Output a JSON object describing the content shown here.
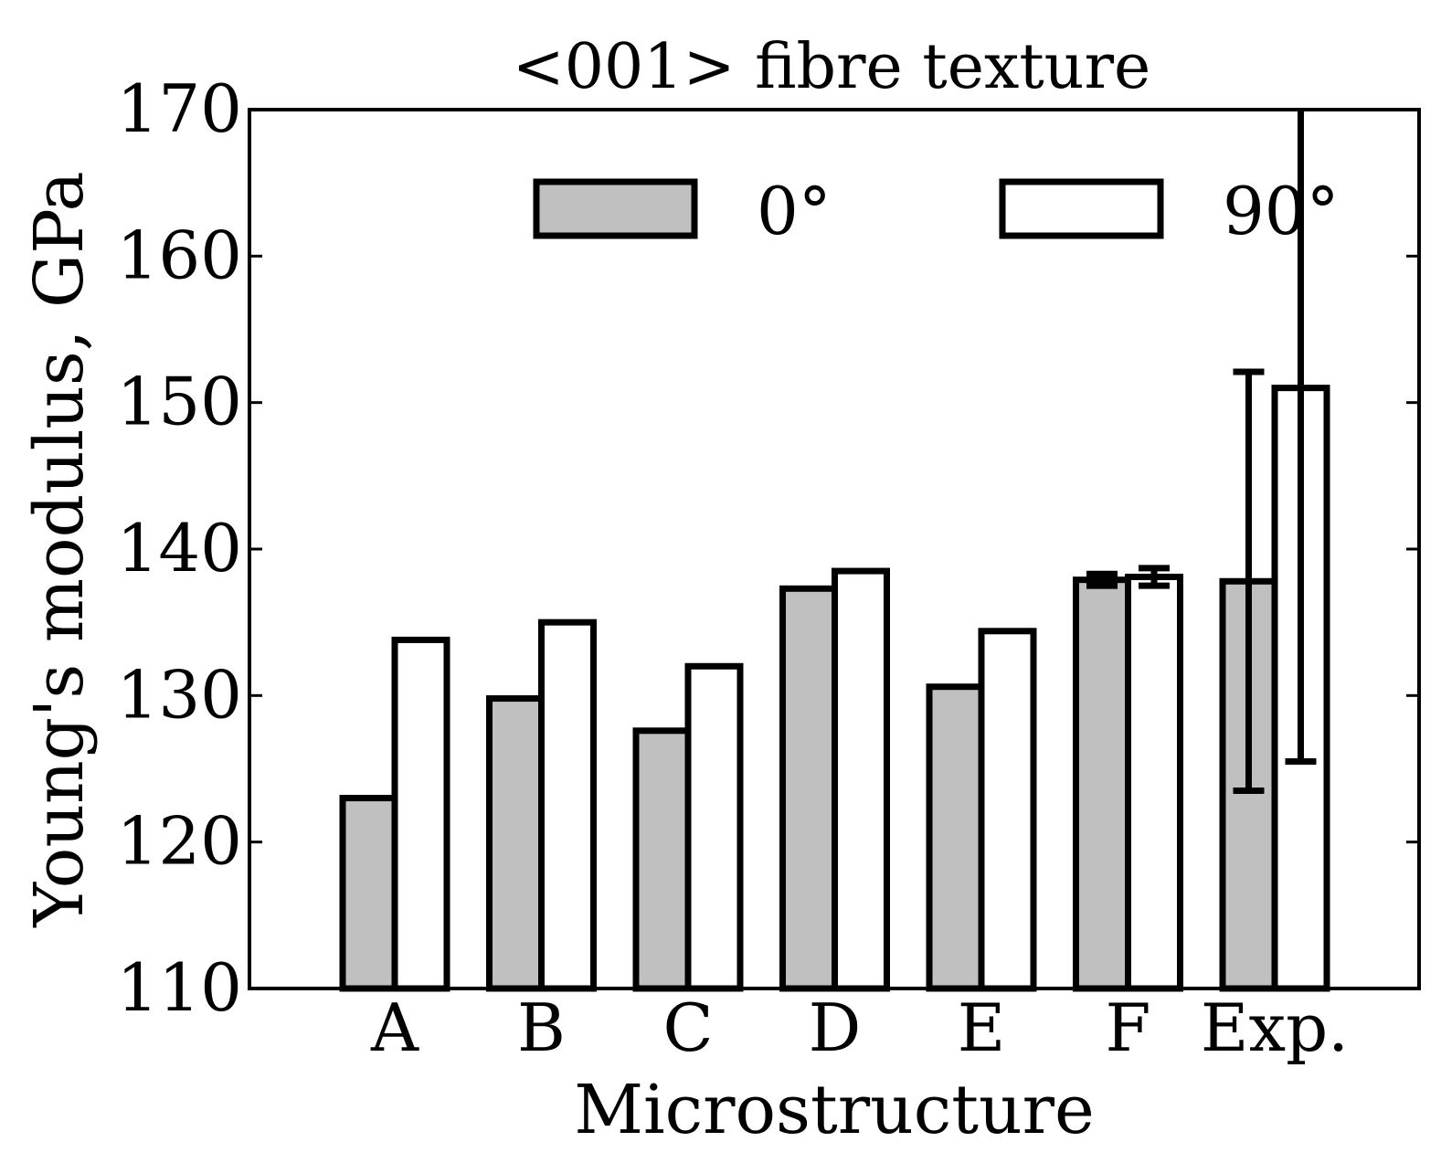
{
  "chart_data": {
    "type": "bar",
    "title": "<001> fibre texture",
    "xlabel": "Microstructure",
    "ylabel": "Young's modulus, GPa",
    "categories": [
      "A",
      "B",
      "C",
      "D",
      "E",
      "F",
      "Exp."
    ],
    "ylim": [
      110,
      170
    ],
    "yticks": [
      "110",
      "120",
      "130",
      "140",
      "150",
      "160",
      "170"
    ],
    "grid": false,
    "legend_position": "top",
    "series": [
      {
        "name": "0°",
        "color": "#c0c0c0",
        "values": [
          123.0,
          129.8,
          127.6,
          137.3,
          130.6,
          137.9,
          137.8
        ],
        "errors": [
          null,
          null,
          null,
          null,
          null,
          0.4,
          14.3
        ]
      },
      {
        "name": "90°",
        "color": "#ffffff",
        "values": [
          133.8,
          135.0,
          132.0,
          138.5,
          134.4,
          138.1,
          151.0
        ],
        "errors": [
          null,
          null,
          null,
          null,
          null,
          0.6,
          25.5
        ]
      }
    ]
  }
}
